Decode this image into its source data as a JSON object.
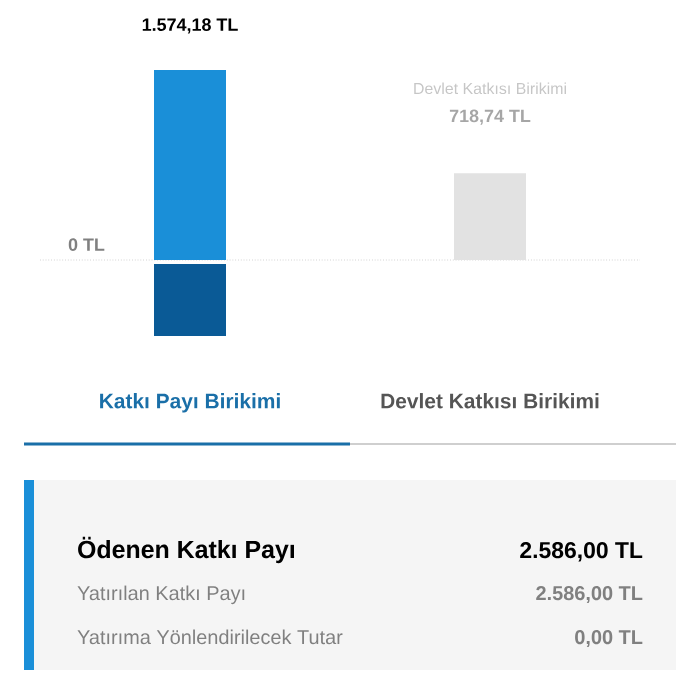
{
  "chart_data": [
    {
      "type": "bar",
      "categories": [
        "Katkı Payı Birikimi",
        "Devlet Katkısı Birikimi"
      ],
      "colors": [
        "#1a8fd8",
        "#e2e2e2"
      ],
      "values": [
        1574.18,
        718.74
      ],
      "value_labels": [
        "1.574,18 TL",
        "718,74 TL"
      ],
      "ref_lines": [
        {
          "axis": "y",
          "value": 0,
          "label": "0 TL",
          "line_style": "dotted",
          "color": "#bbbbbb"
        }
      ],
      "annotations": [
        "Devlet Katkısı Birikimi"
      ]
    },
    {
      "type": "other",
      "title": "Ödenen Katkı Payı",
      "annotations": [
        "2.586,00 TL",
        "Yatırılan Katkı Payı",
        "2.586,00 TL",
        "Yatırıma Yönlendirilecek Tutar",
        "0,00 TL"
      ]
    }
  ]
}
